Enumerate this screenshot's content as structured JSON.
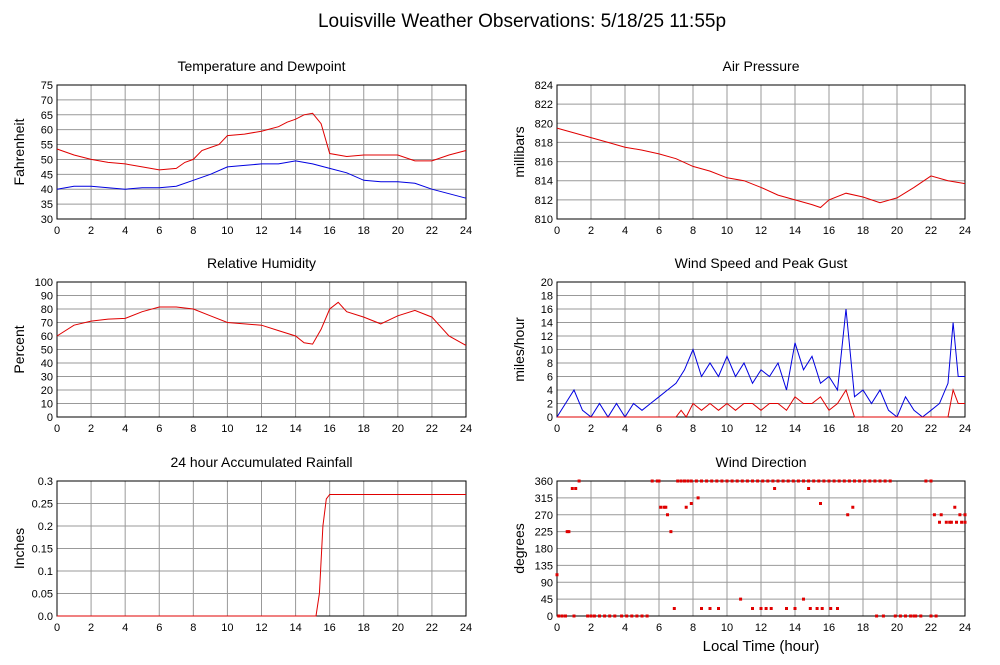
{
  "page_title": "Louisville Weather Observations: 5/18/25 11:55p",
  "bottom_xlabel": "Local Time (hour)",
  "colors": {
    "primary": "#e00000",
    "secondary": "#0000e0",
    "grid": "#999999"
  },
  "chart_data": [
    {
      "type": "line",
      "title": "Temperature and Dewpoint",
      "ylabel": "Fahrenheit",
      "xlabel": "",
      "xlim": [
        0,
        24
      ],
      "ylim": [
        30,
        75
      ],
      "x_ticks": [
        0,
        2,
        4,
        6,
        8,
        10,
        12,
        14,
        16,
        18,
        20,
        22,
        24
      ],
      "y_ticks": [
        30,
        35,
        40,
        45,
        50,
        55,
        60,
        65,
        70,
        75
      ],
      "grid": true,
      "series": [
        {
          "color": "#e00000",
          "x": [
            0,
            1,
            2,
            3,
            4,
            5,
            6,
            7,
            7.5,
            8,
            8.5,
            9,
            9.5,
            10,
            11,
            12,
            13,
            13.5,
            14,
            14.5,
            15,
            15.5,
            16,
            17,
            18,
            19,
            20,
            21,
            22,
            23,
            24
          ],
          "y": [
            53.5,
            51.5,
            50,
            49,
            48.5,
            47.5,
            46.5,
            47,
            49,
            50,
            53,
            54,
            55,
            58,
            58.5,
            59.5,
            61,
            62.5,
            63.5,
            65,
            65.5,
            62,
            52,
            51,
            51.5,
            51.5,
            51.5,
            49.5,
            49.5,
            51.5,
            53
          ]
        },
        {
          "color": "#0000e0",
          "x": [
            0,
            1,
            2,
            3,
            4,
            5,
            6,
            7,
            8,
            9,
            10,
            11,
            12,
            13,
            14,
            15,
            16,
            17,
            18,
            19,
            20,
            21,
            22,
            23,
            24
          ],
          "y": [
            40,
            41,
            41,
            40.5,
            40,
            40.5,
            40.5,
            41,
            43,
            45,
            47.5,
            48,
            48.5,
            48.5,
            49.5,
            48.5,
            47,
            45.5,
            43,
            42.5,
            42.5,
            42,
            40,
            38.5,
            37
          ]
        }
      ]
    },
    {
      "type": "line",
      "title": "Air Pressure",
      "ylabel": "millibars",
      "xlabel": "",
      "xlim": [
        0,
        24
      ],
      "ylim": [
        810,
        824
      ],
      "x_ticks": [
        0,
        2,
        4,
        6,
        8,
        10,
        12,
        14,
        16,
        18,
        20,
        22,
        24
      ],
      "y_ticks": [
        810,
        812,
        814,
        816,
        818,
        820,
        822,
        824
      ],
      "grid": true,
      "series": [
        {
          "color": "#e00000",
          "x": [
            0,
            1,
            2,
            3,
            4,
            5,
            6,
            7,
            8,
            9,
            10,
            11,
            12,
            13,
            14,
            15,
            15.5,
            16,
            17,
            18,
            19,
            20,
            21,
            22,
            23,
            24
          ],
          "y": [
            819.5,
            819,
            818.5,
            818,
            817.5,
            817.2,
            816.8,
            816.3,
            815.5,
            815,
            814.3,
            814,
            813.3,
            812.5,
            812,
            811.5,
            811.2,
            812,
            812.7,
            812.3,
            811.7,
            812.2,
            813.3,
            814.5,
            814,
            813.7
          ]
        }
      ]
    },
    {
      "type": "line",
      "title": "Relative Humidity",
      "ylabel": "Percent",
      "xlabel": "",
      "xlim": [
        0,
        24
      ],
      "ylim": [
        0,
        100
      ],
      "x_ticks": [
        0,
        2,
        4,
        6,
        8,
        10,
        12,
        14,
        16,
        18,
        20,
        22,
        24
      ],
      "y_ticks": [
        0,
        10,
        20,
        30,
        40,
        50,
        60,
        70,
        80,
        90,
        100
      ],
      "grid": true,
      "series": [
        {
          "color": "#e00000",
          "x": [
            0,
            1,
            2,
            3,
            4,
            5,
            6,
            7,
            8,
            9,
            10,
            11,
            12,
            13,
            14,
            14.5,
            15,
            15.5,
            16,
            16.5,
            17,
            18,
            19,
            20,
            21,
            22,
            23,
            24
          ],
          "y": [
            60,
            68,
            71,
            72.5,
            73,
            78,
            81.5,
            81.5,
            80,
            75,
            70,
            69,
            68,
            64,
            60,
            55,
            54,
            65,
            80,
            85,
            78,
            74,
            69,
            75,
            79,
            74,
            60,
            53
          ]
        }
      ]
    },
    {
      "type": "line",
      "title": "Wind Speed and Peak Gust",
      "ylabel": "miles/hour",
      "xlabel": "",
      "xlim": [
        0,
        24
      ],
      "ylim": [
        0,
        20
      ],
      "x_ticks": [
        0,
        2,
        4,
        6,
        8,
        10,
        12,
        14,
        16,
        18,
        20,
        22,
        24
      ],
      "y_ticks": [
        0,
        2,
        4,
        6,
        8,
        10,
        12,
        14,
        16,
        18,
        20
      ],
      "grid": true,
      "series": [
        {
          "color": "#0000e0",
          "x": [
            0,
            0.5,
            1,
            1.5,
            2,
            2.5,
            3,
            3.5,
            4,
            4.5,
            5,
            5.5,
            6,
            6.5,
            7,
            7.5,
            8,
            8.5,
            9,
            9.5,
            10,
            10.5,
            11,
            11.5,
            12,
            12.5,
            13,
            13.5,
            14,
            14.5,
            15,
            15.5,
            16,
            16.5,
            17,
            17.5,
            18,
            18.5,
            19,
            19.5,
            20,
            20.5,
            21,
            21.5,
            22,
            22.5,
            23,
            23.3,
            23.6,
            24
          ],
          "y": [
            0,
            2,
            4,
            1,
            0,
            2,
            0,
            2,
            0,
            2,
            1,
            2,
            3,
            4,
            5,
            7,
            10,
            6,
            8,
            6,
            9,
            6,
            8,
            5,
            7,
            6,
            8,
            4,
            11,
            7,
            9,
            5,
            6,
            4,
            16,
            3,
            4,
            2,
            4,
            1,
            0,
            3,
            1,
            0,
            1,
            2,
            5,
            14,
            6,
            6
          ]
        },
        {
          "color": "#e00000",
          "x": [
            0,
            7,
            7.3,
            7.6,
            8,
            8.5,
            9,
            9.5,
            10,
            10.5,
            11,
            11.5,
            12,
            12.5,
            13,
            13.5,
            14,
            14.5,
            15,
            15.5,
            16,
            16.5,
            17,
            17.5,
            18,
            23,
            23.3,
            23.6,
            24
          ],
          "y": [
            0,
            0,
            1,
            0,
            2,
            1,
            2,
            1,
            2,
            1,
            2,
            2,
            1,
            2,
            2,
            1,
            3,
            2,
            2,
            3,
            1,
            2,
            4,
            0,
            0,
            0,
            4,
            2,
            2
          ]
        }
      ]
    },
    {
      "type": "line",
      "title": "24 hour Accumulated Rainfall",
      "ylabel": "Inches",
      "xlabel": "",
      "xlim": [
        0,
        24
      ],
      "ylim": [
        0,
        0.3
      ],
      "x_ticks": [
        0,
        2,
        4,
        6,
        8,
        10,
        12,
        14,
        16,
        18,
        20,
        22,
        24
      ],
      "y_ticks": [
        "0.0",
        "0.05",
        "0.1",
        "0.15",
        "0.2",
        "0.25",
        "0.3"
      ],
      "grid": true,
      "series": [
        {
          "color": "#e00000",
          "x": [
            0,
            15.2,
            15.4,
            15.6,
            15.8,
            16,
            24
          ],
          "y": [
            0,
            0,
            0.05,
            0.2,
            0.26,
            0.27,
            0.27
          ]
        }
      ]
    },
    {
      "type": "scatter",
      "title": "Wind Direction",
      "ylabel": "degrees",
      "xlabel": "Local Time (hour)",
      "xlim": [
        0,
        24
      ],
      "ylim": [
        0,
        360
      ],
      "x_ticks": [
        0,
        2,
        4,
        6,
        8,
        10,
        12,
        14,
        16,
        18,
        20,
        22,
        24
      ],
      "y_ticks": [
        0,
        45,
        90,
        135,
        180,
        225,
        270,
        315,
        360
      ],
      "grid": true,
      "series": [
        {
          "color": "#e00000",
          "x": [
            0.1,
            0.3,
            0.5,
            0.7,
            0.9,
            1.1,
            1.3,
            1.8,
            2.0,
            2.2,
            2.5,
            2.8,
            3.1,
            3.4,
            3.8,
            4.1,
            4.4,
            4.7,
            5.0,
            5.3,
            5.6,
            5.9,
            6.1,
            6.3,
            6.5,
            6.7,
            6.9,
            7.1,
            7.3,
            7.5,
            7.7,
            7.9,
            8.2,
            8.5,
            8.8,
            9.1,
            9.4,
            9.7,
            10.0,
            10.3,
            10.6,
            10.9,
            11.2,
            11.5,
            11.8,
            12.1,
            12.4,
            12.7,
            13.0,
            13.3,
            13.6,
            13.9,
            14.2,
            14.5,
            14.8,
            15.1,
            15.4,
            15.7,
            16.0,
            16.3,
            16.6,
            16.9,
            17.2,
            17.5,
            17.8,
            18.1,
            18.4,
            18.7,
            19.0,
            19.3,
            19.6,
            19.9,
            20.2,
            20.5,
            20.8,
            21.1,
            21.4,
            21.7,
            22.0,
            22.3,
            22.6,
            22.9,
            23.2,
            23.5,
            23.8,
            24.0,
            8.5,
            9.0,
            9.5,
            10.8,
            11.5,
            12.0,
            12.3,
            12.6,
            13.5,
            14.0,
            14.5,
            14.9,
            15.3,
            15.6,
            16.1,
            16.5,
            18.8,
            19.2,
            20.5,
            21.0,
            22.0,
            0.0,
            0.3,
            0.6,
            1.0,
            6.0,
            6.4,
            7.6,
            7.9,
            8.3,
            12.8,
            14.8,
            15.5,
            17.1,
            17.4,
            22.2,
            22.5,
            23.1,
            23.4,
            23.7,
            24.0
          ],
          "y": [
            0,
            0,
            0,
            225,
            340,
            340,
            360,
            0,
            0,
            0,
            0,
            0,
            0,
            0,
            0,
            0,
            0,
            0,
            0,
            0,
            360,
            360,
            290,
            290,
            270,
            225,
            20,
            360,
            360,
            360,
            360,
            360,
            360,
            360,
            360,
            360,
            360,
            360,
            360,
            360,
            360,
            360,
            360,
            360,
            360,
            360,
            360,
            360,
            360,
            360,
            360,
            360,
            360,
            360,
            360,
            360,
            360,
            360,
            360,
            360,
            360,
            360,
            360,
            360,
            360,
            360,
            360,
            360,
            360,
            360,
            360,
            0,
            0,
            0,
            0,
            0,
            0,
            360,
            360,
            0,
            270,
            250,
            250,
            250,
            250,
            270,
            20,
            20,
            20,
            45,
            20,
            20,
            20,
            20,
            20,
            20,
            45,
            20,
            20,
            20,
            20,
            20,
            0,
            0,
            0,
            0,
            0,
            110,
            0,
            225,
            0,
            360,
            290,
            290,
            300,
            315,
            340,
            340,
            300,
            270,
            290,
            270,
            250,
            250,
            290,
            270,
            250
          ]
        }
      ]
    }
  ]
}
